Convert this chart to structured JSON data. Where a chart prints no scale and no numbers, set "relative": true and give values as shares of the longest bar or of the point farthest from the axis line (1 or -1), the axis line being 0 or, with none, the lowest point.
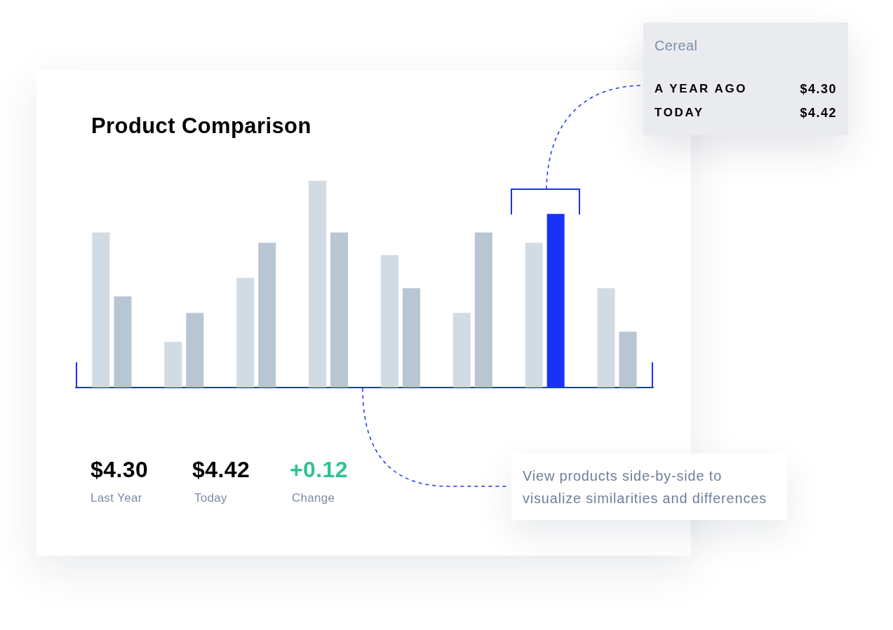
{
  "chart_data": {
    "type": "bar",
    "title": "Product Comparison",
    "categories": [
      null,
      null,
      null,
      null,
      null,
      null,
      null,
      null
    ],
    "series": [
      {
        "color": "#d1dbe3",
        "values": [
          0.75,
          0.22,
          0.53,
          1,
          0.64,
          0.36,
          0.7,
          0.48
        ]
      },
      {
        "colors": [
          "#b8c5d3",
          "#b8c5d3",
          "#b8c5d3",
          "#b8c5d3",
          "#b8c5d3",
          "#b8c5d3",
          "#1733f5",
          "#b8c5d3"
        ],
        "values": [
          0.44,
          0.36,
          0.7,
          0.75,
          0.48,
          0.75,
          0.84,
          0.27
        ]
      }
    ],
    "relative": true,
    "annotations": [
      "$4.30",
      "Last Year",
      "$4.42",
      "Today",
      "+0.12",
      "Change",
      "Cereal",
      "A YEAR AGO",
      "$4.30",
      "TODAY",
      "$4.42",
      "View products side-by-side to visualize similarities and differences"
    ]
  }
}
